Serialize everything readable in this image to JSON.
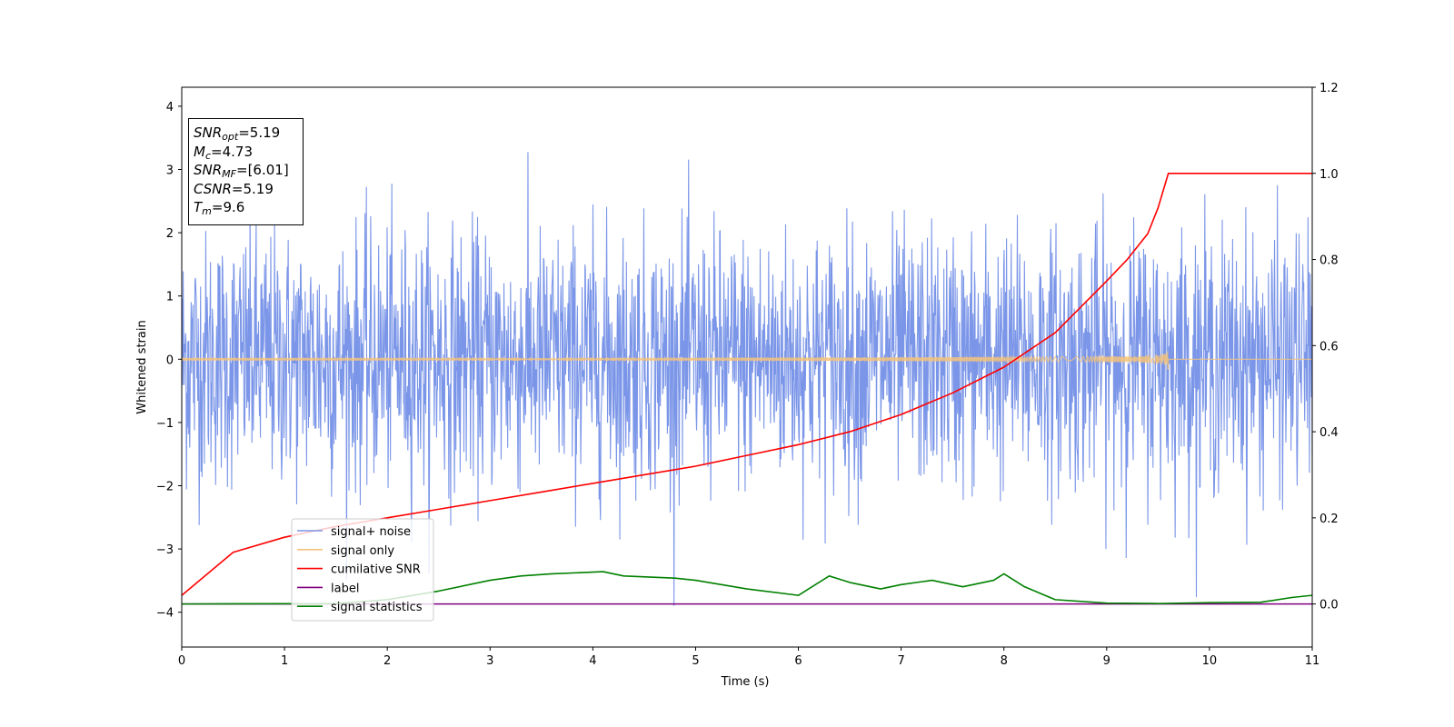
{
  "chart_data": {
    "type": "line",
    "xlabel": "Time (s)",
    "ylabel": "Whitened strain",
    "xlim": [
      0,
      11
    ],
    "ylim": [
      -4.55,
      4.3
    ],
    "y2lim": [
      -0.1,
      1.2
    ],
    "xticks": [
      "0",
      "1",
      "2",
      "3",
      "4",
      "5",
      "6",
      "7",
      "8",
      "9",
      "10",
      "11"
    ],
    "yticks": [
      "4",
      "3",
      "2",
      "1",
      "0",
      "−1",
      "−2",
      "−3",
      "−4"
    ],
    "y2ticks": [
      "1.2",
      "1.0",
      "0.8",
      "0.6",
      "0.4",
      "0.2",
      "0.0"
    ],
    "grid": false,
    "legend_position": "lower-left",
    "series": [
      {
        "name": "signal+ noise",
        "color": "#7b96e8",
        "axis": "left",
        "kind": "gaussian-noise",
        "sigma": 1.0,
        "range": [
          -3.9,
          3.9
        ]
      },
      {
        "name": "signal only",
        "color": "#f5c37a",
        "axis": "left",
        "kind": "chirp",
        "merger_time": 9.6,
        "peak_amplitude": 0.5
      },
      {
        "name": "cumilative SNR",
        "color": "#ff0000",
        "axis": "right",
        "x": [
          0,
          0.5,
          1,
          1.5,
          2,
          2.5,
          3,
          3.5,
          4,
          4.5,
          5,
          5.5,
          6,
          6.5,
          7,
          7.5,
          8,
          8.5,
          9,
          9.2,
          9.4,
          9.5,
          9.6,
          11
        ],
        "values": [
          0.02,
          0.12,
          0.155,
          0.18,
          0.2,
          0.22,
          0.24,
          0.26,
          0.28,
          0.3,
          0.32,
          0.345,
          0.37,
          0.4,
          0.44,
          0.49,
          0.55,
          0.63,
          0.75,
          0.8,
          0.86,
          0.92,
          1.0,
          1.0
        ]
      },
      {
        "name": "label",
        "color": "#800080",
        "axis": "right",
        "x": [
          0,
          11
        ],
        "values": [
          0.0,
          0.0
        ]
      },
      {
        "name": "signal statistics",
        "color": "#008000",
        "axis": "right",
        "x": [
          0,
          1.5,
          2.0,
          2.5,
          3.0,
          3.3,
          3.6,
          4.1,
          4.3,
          4.8,
          5.0,
          5.5,
          6.0,
          6.3,
          6.5,
          6.8,
          7.0,
          7.3,
          7.6,
          7.9,
          8.0,
          8.2,
          8.5,
          9.0,
          9.5,
          10.0,
          10.5,
          10.8,
          11
        ],
        "values": [
          0.0,
          0.001,
          0.01,
          0.03,
          0.055,
          0.065,
          0.07,
          0.075,
          0.065,
          0.06,
          0.055,
          0.035,
          0.02,
          0.065,
          0.05,
          0.035,
          0.045,
          0.055,
          0.04,
          0.055,
          0.07,
          0.04,
          0.01,
          0.002,
          0.001,
          0.003,
          0.004,
          0.015,
          0.02
        ]
      }
    ],
    "annotations": {
      "snr_opt": "=5.19",
      "mc": "=4.73",
      "snr_mf": "=[6.01]",
      "csnr": "=5.19",
      "tm": "=9.6"
    }
  }
}
